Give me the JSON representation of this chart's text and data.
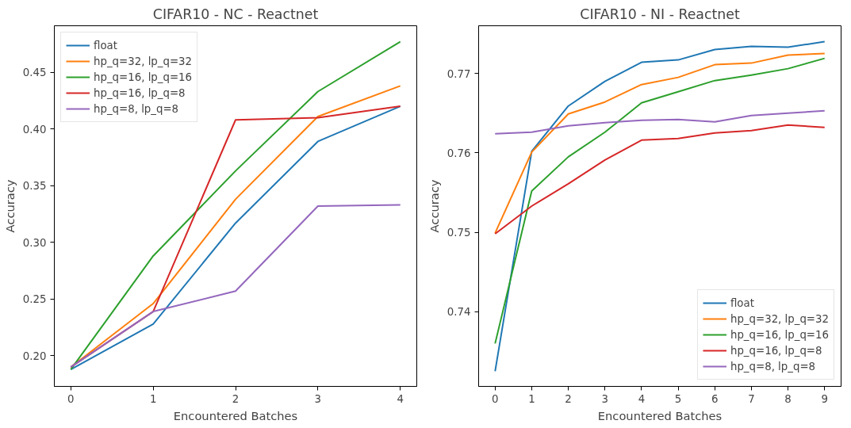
{
  "chart_data": [
    {
      "type": "line",
      "title": "CIFAR10 - NC - Reactnet",
      "xlabel": "Encountered Batches",
      "ylabel": "Accuracy",
      "x": [
        0,
        1,
        2,
        3,
        4
      ],
      "xlim": [
        -0.2,
        4.2
      ],
      "xticks": [
        0,
        1,
        2,
        3,
        4
      ],
      "ylim": [
        0.173,
        0.491
      ],
      "yticks": [
        {
          "value": 0.2,
          "label": "0.20"
        },
        {
          "value": 0.25,
          "label": "0.25"
        },
        {
          "value": 0.3,
          "label": "0.30"
        },
        {
          "value": 0.35,
          "label": "0.35"
        },
        {
          "value": 0.4,
          "label": "0.40"
        },
        {
          "value": 0.45,
          "label": "0.45"
        }
      ],
      "grid": false,
      "legend": "top left",
      "marker": "none",
      "line_style": "solid",
      "series": [
        {
          "name": "float",
          "color": "#1f77b4",
          "values": [
            0.188,
            0.228,
            0.317,
            0.389,
            0.42
          ]
        },
        {
          "name": "hp_q=32, lp_q=32",
          "color": "#ff7f0e",
          "values": [
            0.19,
            0.246,
            0.338,
            0.411,
            0.438
          ]
        },
        {
          "name": "hp_q=16, lp_q=16",
          "color": "#2ca02c",
          "values": [
            0.188,
            0.288,
            0.363,
            0.433,
            0.477
          ]
        },
        {
          "name": "hp_q=16, lp_q=8",
          "color": "#d62728",
          "values": [
            0.19,
            0.239,
            0.408,
            0.41,
            0.42
          ]
        },
        {
          "name": "hp_q=8, lp_q=8",
          "color": "#9467bd",
          "values": [
            0.19,
            0.239,
            0.257,
            0.332,
            0.333
          ]
        }
      ]
    },
    {
      "type": "line",
      "title": "CIFAR10 - NI - Reactnet",
      "xlabel": "Encountered Batches",
      "ylabel": "Accuracy",
      "x": [
        0,
        1,
        2,
        3,
        4,
        5,
        6,
        7,
        8,
        9
      ],
      "xlim": [
        -0.45,
        9.45
      ],
      "xticks": [
        0,
        1,
        2,
        3,
        4,
        5,
        6,
        7,
        8,
        9
      ],
      "ylim": [
        0.7306,
        0.776
      ],
      "yticks": [
        0.74,
        0.75,
        0.76,
        0.77
      ],
      "grid": false,
      "legend": "bottom right",
      "marker": "none",
      "line_style": "solid",
      "series": [
        {
          "name": "float",
          "color": "#1f77b4",
          "values": [
            0.7325,
            0.7602,
            0.7659,
            0.769,
            0.7714,
            0.7717,
            0.773,
            0.7734,
            0.7733,
            0.774
          ]
        },
        {
          "name": "hp_q=32, lp_q=32",
          "color": "#ff7f0e",
          "values": [
            0.7499,
            0.7601,
            0.7649,
            0.7664,
            0.7686,
            0.7695,
            0.7711,
            0.7713,
            0.7723,
            0.7725
          ]
        },
        {
          "name": "hp_q=16, lp_q=16",
          "color": "#2ca02c",
          "values": [
            0.736,
            0.7552,
            0.7595,
            0.7626,
            0.7663,
            0.7677,
            0.7691,
            0.7698,
            0.7706,
            0.7719
          ]
        },
        {
          "name": "hp_q=16, lp_q=8",
          "color": "#d62728",
          "values": [
            0.7498,
            0.7533,
            0.7561,
            0.7591,
            0.7616,
            0.7618,
            0.7625,
            0.7628,
            0.7635,
            0.7632
          ]
        },
        {
          "name": "hp_q=8, lp_q=8",
          "color": "#9467bd",
          "values": [
            0.7624,
            0.7626,
            0.7634,
            0.7638,
            0.7641,
            0.7642,
            0.7639,
            0.7647,
            0.765,
            0.7653
          ]
        }
      ]
    }
  ]
}
